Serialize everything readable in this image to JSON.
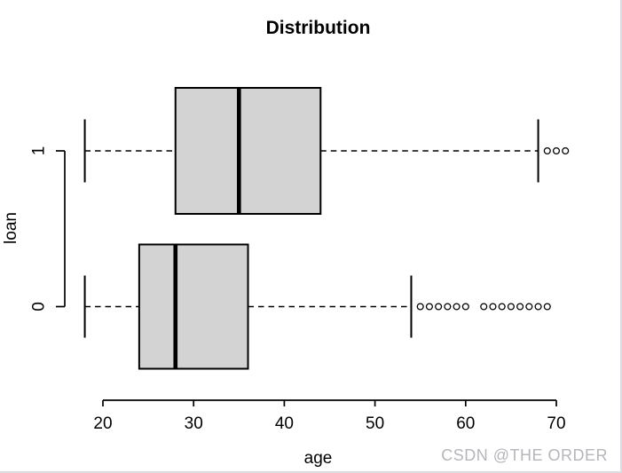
{
  "chart_data": {
    "type": "boxplot",
    "orientation": "horizontal",
    "title": "Distribution",
    "xlabel": "age",
    "ylabel": "loan",
    "x_ticks": [
      20,
      30,
      40,
      50,
      60,
      70
    ],
    "xlim": [
      20,
      70
    ],
    "grid": false,
    "legend": "none",
    "box_fill": "#d3d3d3",
    "line_color": "#000000",
    "groups": [
      {
        "label": "1",
        "whisker_low": 18,
        "q1": 28,
        "median": 35,
        "q3": 44,
        "whisker_high": 68,
        "outliers": [
          69,
          70,
          71
        ]
      },
      {
        "label": "0",
        "whisker_low": 18,
        "q1": 24,
        "median": 28,
        "q3": 36,
        "whisker_high": 54,
        "outliers": [
          55,
          56,
          57,
          58,
          59,
          60,
          62,
          63,
          64,
          65,
          66,
          67,
          68,
          69
        ]
      }
    ]
  },
  "watermark": {
    "text": "CSDN @THE ORDER",
    "color": "#b4b6ba"
  }
}
